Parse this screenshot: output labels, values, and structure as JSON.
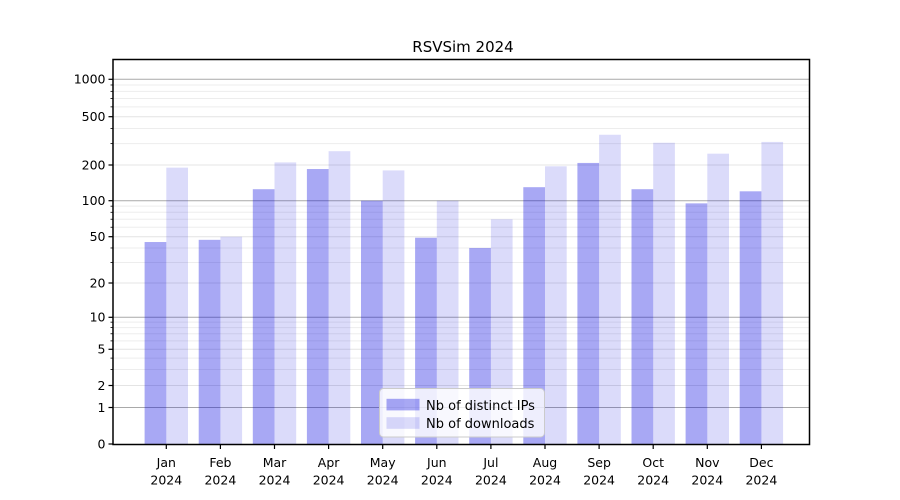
{
  "chart_data": {
    "type": "bar",
    "title": "RSVSim 2024",
    "xlabel": "",
    "ylabel": "",
    "x_axis": {
      "categories": [
        "Jan",
        "Feb",
        "Mar",
        "Apr",
        "May",
        "Jun",
        "Jul",
        "Aug",
        "Sep",
        "Oct",
        "Nov",
        "Dec"
      ],
      "year_label": "2024"
    },
    "y_axis": {
      "scale": "symlog",
      "ticks": [
        0,
        1,
        2,
        5,
        10,
        20,
        50,
        100,
        200,
        500,
        1000
      ],
      "minor_ticks": [
        3,
        4,
        6,
        7,
        8,
        9,
        30,
        40,
        60,
        70,
        80,
        90,
        300,
        400,
        600,
        700,
        800,
        900
      ],
      "range": [
        0,
        1460
      ],
      "grid": true
    },
    "series": [
      {
        "name": "Nb of distinct IPs",
        "color": "rgba(0,0,222,0.34)",
        "values": [
          45,
          47,
          125,
          185,
          100,
          49,
          40,
          130,
          208,
          125,
          95,
          120
        ]
      },
      {
        "name": "Nb of downloads",
        "color": "rgba(0,0,222,0.14)",
        "values": [
          190,
          50,
          210,
          260,
          180,
          100,
          70,
          195,
          355,
          305,
          248,
          310
        ]
      }
    ],
    "legend": {
      "position": "lower center"
    }
  }
}
